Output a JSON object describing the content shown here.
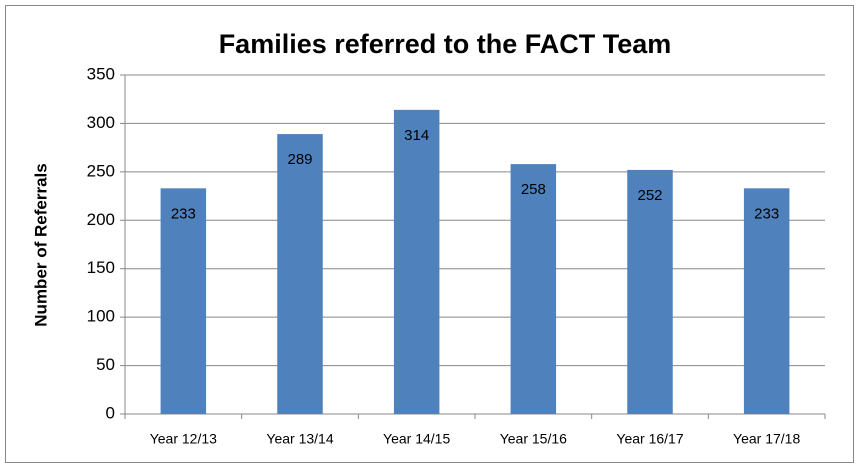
{
  "chart_data": {
    "type": "bar",
    "title": "Families referred to the FACT Team",
    "y_label": "Number of Referrals",
    "categories": [
      "Year 12/13",
      "Year 13/14",
      "Year 14/15",
      "Year 15/16",
      "Year 16/17",
      "Year 17/18"
    ],
    "values": [
      233,
      289,
      314,
      258,
      252,
      233
    ],
    "color": "#4f81bd",
    "ylim": [
      0,
      350
    ],
    "yticks": [
      0,
      50,
      100,
      150,
      200,
      250,
      300,
      350
    ],
    "grid": true,
    "data_labels": true
  }
}
